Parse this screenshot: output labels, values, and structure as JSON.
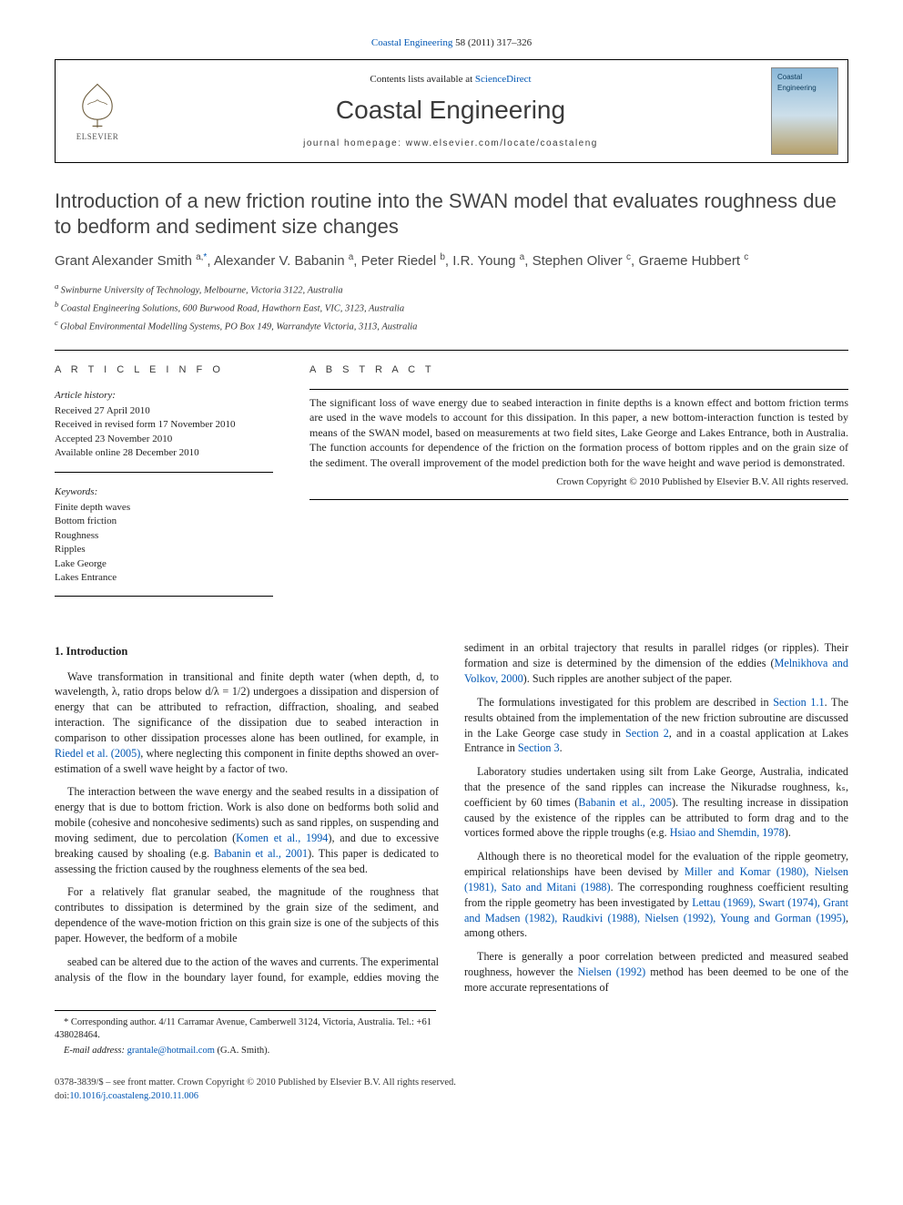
{
  "top_citation": {
    "journal_link": "Coastal Engineering",
    "rest": " 58 (2011) 317–326"
  },
  "header": {
    "contents_prefix": "Contents lists available at ",
    "contents_link": "ScienceDirect",
    "journal_name": "Coastal Engineering",
    "homepage_prefix": "journal homepage: ",
    "homepage_url": "www.elsevier.com/locate/coastaleng",
    "publisher": "ELSEVIER",
    "cover_label": "Coastal Engineering"
  },
  "article": {
    "title": "Introduction of a new friction routine into the SWAN model that evaluates roughness due to bedform and sediment size changes",
    "authors_html_parts": [
      {
        "name": "Grant Alexander Smith",
        "sup": "a,",
        "corr": "*"
      },
      {
        "name": "Alexander V. Babanin",
        "sup": "a"
      },
      {
        "name": "Peter Riedel",
        "sup": "b"
      },
      {
        "name": "I.R. Young",
        "sup": "a"
      },
      {
        "name": "Stephen Oliver",
        "sup": "c"
      },
      {
        "name": "Graeme Hubbert",
        "sup": "c"
      }
    ],
    "affiliations": [
      {
        "key": "a",
        "text": "Swinburne University of Technology, Melbourne, Victoria 3122, Australia"
      },
      {
        "key": "b",
        "text": "Coastal Engineering Solutions, 600 Burwood Road, Hawthorn East, VIC, 3123, Australia"
      },
      {
        "key": "c",
        "text": "Global Environmental Modelling Systems, PO Box 149, Warrandyte Victoria, 3113, Australia"
      }
    ]
  },
  "info": {
    "section_label": "A R T I C L E   I N F O",
    "history_label": "Article history:",
    "history": [
      "Received 27 April 2010",
      "Received in revised form 17 November 2010",
      "Accepted 23 November 2010",
      "Available online 28 December 2010"
    ],
    "keywords_label": "Keywords:",
    "keywords": [
      "Finite depth waves",
      "Bottom friction",
      "Roughness",
      "Ripples",
      "Lake George",
      "Lakes Entrance"
    ]
  },
  "abstract": {
    "label": "A B S T R A C T",
    "text": "The significant loss of wave energy due to seabed interaction in finite depths is a known effect and bottom friction terms are used in the wave models to account for this dissipation. In this paper, a new bottom-interaction function is tested by means of the SWAN model, based on measurements at two field sites, Lake George and Lakes Entrance, both in Australia. The function accounts for dependence of the friction on the formation process of bottom ripples and on the grain size of the sediment. The overall improvement of the model prediction both for the wave height and wave period is demonstrated.",
    "crown": "Crown Copyright © 2010 Published by Elsevier B.V. All rights reserved."
  },
  "body": {
    "section1_title": "1. Introduction",
    "p1_a": "Wave transformation in transitional and finite depth water (when depth, d, to wavelength, λ, ratio drops below d/λ = 1/2) undergoes a dissipation and dispersion of energy that can be attributed to refraction, diffraction, shoaling, and seabed interaction. The significance of the dissipation due to seabed interaction in comparison to other dissipation processes alone has been outlined, for example, in ",
    "p1_link": "Riedel et al. (2005)",
    "p1_b": ", where neglecting this component in finite depths showed an over-estimation of a swell wave height by a factor of two.",
    "p2_a": "The interaction between the wave energy and the seabed results in a dissipation of energy that is due to bottom friction. Work is also done on bedforms both solid and mobile (cohesive and noncohesive sediments) such as sand ripples, on suspending and moving sediment, due to percolation (",
    "p2_link1": "Komen et al., 1994",
    "p2_b": "), and due to excessive breaking caused by shoaling (e.g. ",
    "p2_link2": "Babanin et al., 2001",
    "p2_c": "). This paper is dedicated to assessing the friction caused by the roughness elements of the sea bed.",
    "p3": "For a relatively flat granular seabed, the magnitude of the roughness that contributes to dissipation is determined by the grain size of the sediment, and dependence of the wave-motion friction on this grain size is one of the subjects of this paper. However, the bedform of a mobile",
    "p4_a": "seabed can be altered due to the action of the waves and currents. The experimental analysis of the flow in the boundary layer found, for example, eddies moving the sediment in an orbital trajectory that results in parallel ridges (or ripples). Their formation and size is determined by the dimension of the eddies (",
    "p4_link": "Melnikhova and Volkov, 2000",
    "p4_b": "). Such ripples are another subject of the paper.",
    "p5_a": "The formulations investigated for this problem are described in ",
    "p5_link1": "Section 1.1",
    "p5_b": ". The results obtained from the implementation of the new friction subroutine are discussed in the Lake George case study in ",
    "p5_link2": "Section 2",
    "p5_c": ", and in a coastal application at Lakes Entrance in ",
    "p5_link3": "Section 3",
    "p5_d": ".",
    "p6_a": "Laboratory studies undertaken using silt from Lake George, Australia, indicated that the presence of the sand ripples can increase the Nikuradse roughness, kₛ, coefficient by 60 times (",
    "p6_link1": "Babanin et al., 2005",
    "p6_b": "). The resulting increase in dissipation caused by the existence of the ripples can be attributed to form drag and to the vortices formed above the ripple troughs (e.g. ",
    "p6_link2": "Hsiao and Shemdin, 1978",
    "p6_c": ").",
    "p7_a": "Although there is no theoretical model for the evaluation of the ripple geometry, empirical relationships have been devised by ",
    "p7_link1": "Miller and Komar (1980), Nielsen (1981), Sato and Mitani (1988)",
    "p7_b": ". The corresponding roughness coefficient resulting from the ripple geometry has been investigated by ",
    "p7_link2": "Lettau (1969), Swart (1974), Grant and Madsen (1982), Raudkivi (1988), Nielsen (1992), Young and Gorman (1995)",
    "p7_c": ", among others.",
    "p8_a": "There is generally a poor correlation between predicted and measured seabed roughness, however the ",
    "p8_link": "Nielsen (1992)",
    "p8_b": " method has been deemed to be one of the more accurate representations of"
  },
  "footnote": {
    "corr_label": "* Corresponding author. 4/11 Carramar Avenue, Camberwell 3124, Victoria, Australia. Tel.: +61 438028464.",
    "email_label": "E-mail address: ",
    "email": "grantale@hotmail.com",
    "email_suffix": " (G.A. Smith)."
  },
  "footer": {
    "issn_line": "0378-3839/$ – see front matter. Crown Copyright © 2010 Published by Elsevier B.V. All rights reserved.",
    "doi_prefix": "doi:",
    "doi": "10.1016/j.coastaleng.2010.11.006"
  },
  "colors": {
    "link": "#0056b3",
    "text": "#222222",
    "heading": "#454545",
    "rule": "#000000"
  }
}
